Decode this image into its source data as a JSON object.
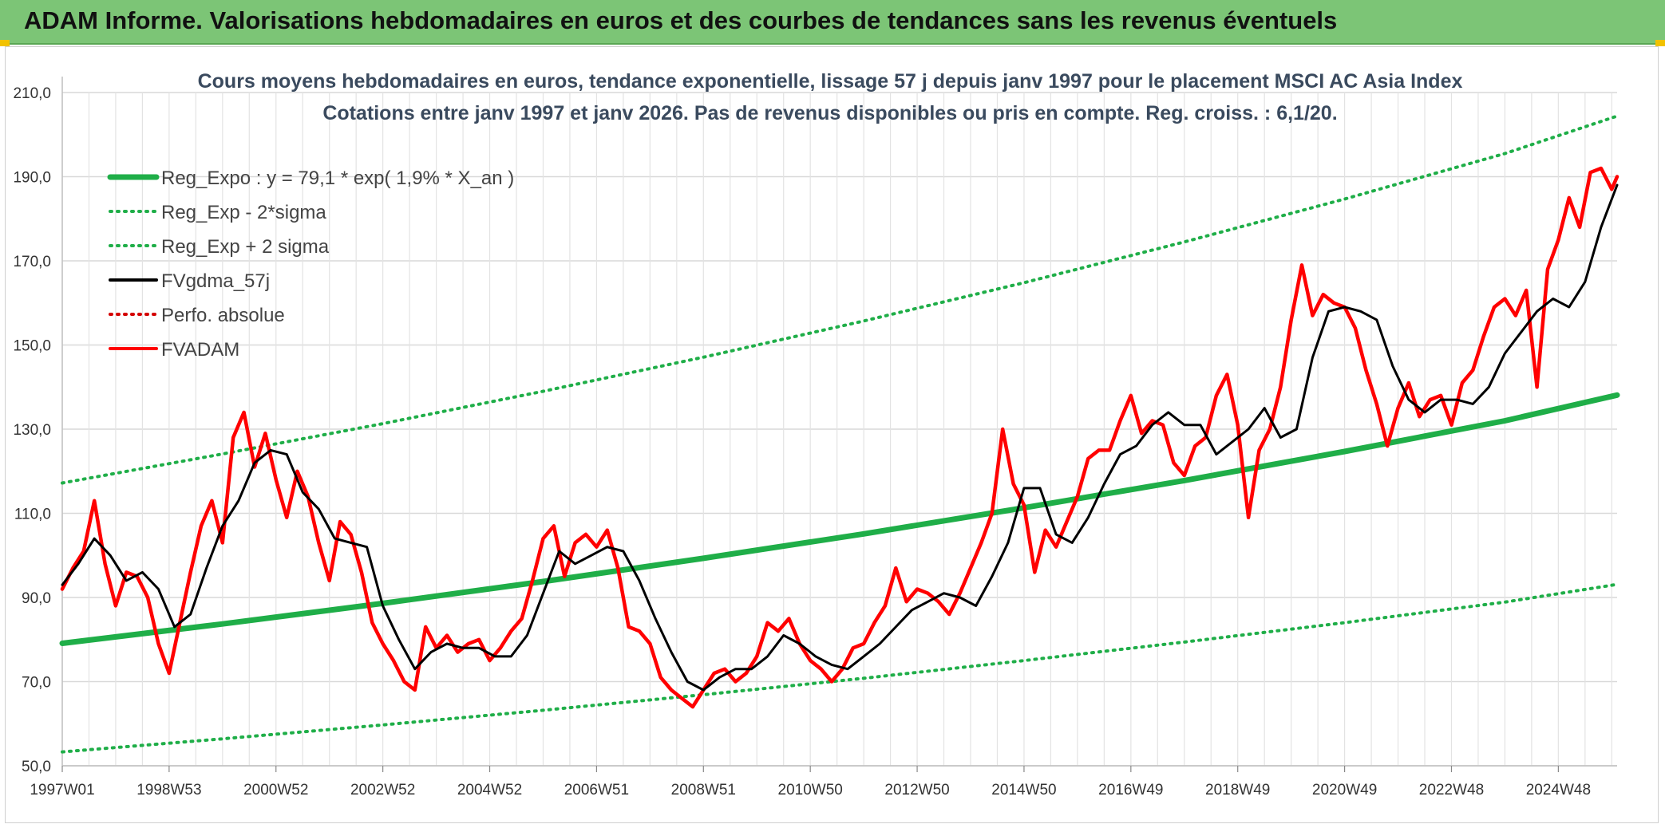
{
  "header": {
    "title": "ADAM Informe. Valorisations hebdomadaires en euros et des courbes de tendances sans les revenus éventuels",
    "background": "#7cc576"
  },
  "chart_data": {
    "type": "line",
    "title_line1": "Cours moyens hebdomadaires en euros, tendance exponentielle, lissage 57 j depuis janv 1997 pour le placement MSCI AC Asia Index",
    "title_line2": "Cotations entre janv 1997 et janv 2026. Pas de revenus disponibles ou pris en compte. Reg. croiss. : 6,1/20.",
    "xlabel": "",
    "ylabel": "",
    "ylim": [
      50,
      210
    ],
    "xlim": [
      1997.0,
      2026.1
    ],
    "y_ticks": [
      "50,0",
      "70,0",
      "90,0",
      "110,0",
      "130,0",
      "150,0",
      "170,0",
      "190,0",
      "210,0"
    ],
    "x_ticks": [
      {
        "label": "1997W01",
        "x": 1997.0
      },
      {
        "label": "1998W53",
        "x": 1999.0
      },
      {
        "label": "2000W52",
        "x": 2001.0
      },
      {
        "label": "2002W52",
        "x": 2003.0
      },
      {
        "label": "2004W52",
        "x": 2005.0
      },
      {
        "label": "2006W51",
        "x": 2007.0
      },
      {
        "label": "2008W51",
        "x": 2009.0
      },
      {
        "label": "2010W50",
        "x": 2011.0
      },
      {
        "label": "2012W50",
        "x": 2013.0
      },
      {
        "label": "2014W50",
        "x": 2015.0
      },
      {
        "label": "2016W49",
        "x": 2017.0
      },
      {
        "label": "2018W49",
        "x": 2019.0
      },
      {
        "label": "2020W49",
        "x": 2021.0
      },
      {
        "label": "2022W48",
        "x": 2023.0
      },
      {
        "label": "2024W48",
        "x": 2025.0
      }
    ],
    "grid": true,
    "legend_position": "top-left",
    "regression": {
      "a": 79.1,
      "b": 0.019,
      "x0": 1997.0,
      "sigma_band": 1
    },
    "series": [
      {
        "name": "Reg_Expo : y = 79,1 * exp( 1,9% *  X_an )",
        "style": "solid-thick",
        "color": "#1fae48",
        "x": [
          1997.0,
          2000.0,
          2003.0,
          2006.0,
          2009.0,
          2012.0,
          2015.0,
          2018.0,
          2021.0,
          2024.0,
          2026.1
        ],
        "values": [
          79.1,
          83.7,
          88.6,
          93.8,
          99.3,
          105.1,
          111.3,
          117.8,
          124.7,
          132.0,
          138.1
        ]
      },
      {
        "name": "Reg_Exp - 2*sigma",
        "style": "dotted",
        "color": "#1fae48",
        "x": [
          1997.0,
          2000.0,
          2003.0,
          2006.0,
          2009.0,
          2012.0,
          2015.0,
          2018.0,
          2021.0,
          2024.0,
          2026.1
        ],
        "values": [
          53.3,
          56.4,
          59.7,
          63.2,
          66.9,
          70.8,
          75.0,
          79.4,
          84.0,
          88.9,
          93.1
        ]
      },
      {
        "name": "Reg_Exp + 2 sigma",
        "style": "dotted",
        "color": "#1fae48",
        "x": [
          1997.0,
          2000.0,
          2003.0,
          2006.0,
          2009.0,
          2012.0,
          2015.0,
          2018.0,
          2021.0,
          2024.0,
          2026.1
        ],
        "values": [
          117.2,
          124.1,
          131.3,
          139.0,
          147.1,
          155.7,
          164.8,
          174.5,
          184.7,
          195.5,
          204.4
        ]
      },
      {
        "name": "FVgdma_57j",
        "style": "solid",
        "color": "#000000",
        "x": [
          1997.0,
          1997.3,
          1997.6,
          1997.9,
          1998.2,
          1998.5,
          1998.8,
          1999.1,
          1999.4,
          1999.7,
          2000.0,
          2000.3,
          2000.6,
          2000.9,
          2001.2,
          2001.5,
          2001.8,
          2002.1,
          2002.4,
          2002.7,
          2003.0,
          2003.3,
          2003.6,
          2003.9,
          2004.2,
          2004.5,
          2004.8,
          2005.1,
          2005.4,
          2005.7,
          2006.0,
          2006.3,
          2006.6,
          2006.9,
          2007.2,
          2007.5,
          2007.8,
          2008.1,
          2008.4,
          2008.7,
          2009.0,
          2009.3,
          2009.6,
          2009.9,
          2010.2,
          2010.5,
          2010.8,
          2011.1,
          2011.4,
          2011.7,
          2012.0,
          2012.3,
          2012.6,
          2012.9,
          2013.2,
          2013.5,
          2013.8,
          2014.1,
          2014.4,
          2014.7,
          2015.0,
          2015.3,
          2015.6,
          2015.9,
          2016.2,
          2016.5,
          2016.8,
          2017.1,
          2017.4,
          2017.7,
          2018.0,
          2018.3,
          2018.6,
          2018.9,
          2019.2,
          2019.5,
          2019.8,
          2020.1,
          2020.4,
          2020.7,
          2021.0,
          2021.3,
          2021.6,
          2021.9,
          2022.2,
          2022.5,
          2022.8,
          2023.1,
          2023.4,
          2023.7,
          2024.0,
          2024.3,
          2024.6,
          2024.9,
          2025.2,
          2025.5,
          2025.8,
          2026.1
        ],
        "values": [
          93,
          98,
          104,
          100,
          94,
          96,
          92,
          83,
          86,
          97,
          107,
          113,
          122,
          125,
          124,
          115,
          111,
          104,
          103,
          102,
          88,
          80,
          73,
          77,
          79,
          78,
          78,
          76,
          76,
          81,
          91,
          101,
          98,
          100,
          102,
          101,
          94,
          85,
          77,
          70,
          68,
          71,
          73,
          73,
          76,
          81,
          79,
          76,
          74,
          73,
          76,
          79,
          83,
          87,
          89,
          91,
          90,
          88,
          95,
          103,
          116,
          116,
          105,
          103,
          109,
          117,
          124,
          126,
          131,
          134,
          131,
          131,
          124,
          127,
          130,
          135,
          128,
          130,
          147,
          158,
          159,
          158,
          156,
          145,
          137,
          134,
          137,
          137,
          136,
          140,
          148,
          153,
          158,
          161,
          159,
          165,
          178,
          188
        ]
      },
      {
        "name": "Perfo. absolue",
        "style": "dotted",
        "color": "#d40000",
        "x": [],
        "values": []
      },
      {
        "name": "FVADAM",
        "style": "solid-thick",
        "color": "#ff0000",
        "x": [
          1997.0,
          1997.2,
          1997.4,
          1997.6,
          1997.8,
          1998.0,
          1998.2,
          1998.4,
          1998.6,
          1998.8,
          1999.0,
          1999.2,
          1999.4,
          1999.6,
          1999.8,
          2000.0,
          2000.2,
          2000.4,
          2000.6,
          2000.8,
          2001.0,
          2001.2,
          2001.4,
          2001.6,
          2001.8,
          2002.0,
          2002.2,
          2002.4,
          2002.6,
          2002.8,
          2003.0,
          2003.2,
          2003.4,
          2003.6,
          2003.8,
          2004.0,
          2004.2,
          2004.4,
          2004.6,
          2004.8,
          2005.0,
          2005.2,
          2005.4,
          2005.6,
          2005.8,
          2006.0,
          2006.2,
          2006.4,
          2006.6,
          2006.8,
          2007.0,
          2007.2,
          2007.4,
          2007.6,
          2007.8,
          2008.0,
          2008.2,
          2008.4,
          2008.6,
          2008.8,
          2009.0,
          2009.2,
          2009.4,
          2009.6,
          2009.8,
          2010.0,
          2010.2,
          2010.4,
          2010.6,
          2010.8,
          2011.0,
          2011.2,
          2011.4,
          2011.6,
          2011.8,
          2012.0,
          2012.2,
          2012.4,
          2012.6,
          2012.8,
          2013.0,
          2013.2,
          2013.4,
          2013.6,
          2013.8,
          2014.0,
          2014.2,
          2014.4,
          2014.6,
          2014.8,
          2015.0,
          2015.2,
          2015.4,
          2015.6,
          2015.8,
          2016.0,
          2016.2,
          2016.4,
          2016.6,
          2016.8,
          2017.0,
          2017.2,
          2017.4,
          2017.6,
          2017.8,
          2018.0,
          2018.2,
          2018.4,
          2018.6,
          2018.8,
          2019.0,
          2019.2,
          2019.4,
          2019.6,
          2019.8,
          2020.0,
          2020.2,
          2020.4,
          2020.6,
          2020.8,
          2021.0,
          2021.2,
          2021.4,
          2021.6,
          2021.8,
          2022.0,
          2022.2,
          2022.4,
          2022.6,
          2022.8,
          2023.0,
          2023.2,
          2023.4,
          2023.6,
          2023.8,
          2024.0,
          2024.2,
          2024.4,
          2024.6,
          2024.8,
          2025.0,
          2025.2,
          2025.4,
          2025.6,
          2025.8,
          2026.0,
          2026.1
        ],
        "values": [
          92,
          97,
          101,
          113,
          98,
          88,
          96,
          95,
          90,
          79,
          72,
          84,
          96,
          107,
          113,
          103,
          128,
          134,
          121,
          129,
          118,
          109,
          120,
          114,
          103,
          94,
          108,
          105,
          96,
          84,
          79,
          75,
          70,
          68,
          83,
          78,
          81,
          77,
          79,
          80,
          75,
          78,
          82,
          85,
          94,
          104,
          107,
          95,
          103,
          105,
          102,
          106,
          97,
          83,
          82,
          79,
          71,
          68,
          66,
          64,
          68,
          72,
          73,
          70,
          72,
          76,
          84,
          82,
          85,
          79,
          75,
          73,
          70,
          73,
          78,
          79,
          84,
          88,
          97,
          89,
          92,
          91,
          89,
          86,
          91,
          97,
          103,
          110,
          130,
          117,
          112,
          96,
          106,
          102,
          108,
          114,
          123,
          125,
          125,
          132,
          138,
          129,
          132,
          131,
          122,
          119,
          126,
          128,
          138,
          143,
          131,
          109,
          125,
          130,
          140,
          156,
          169,
          157,
          162,
          160,
          159,
          154,
          144,
          136,
          126,
          135,
          141,
          133,
          137,
          138,
          131,
          141,
          144,
          152,
          159,
          161,
          157,
          163,
          140,
          168,
          175,
          185,
          178,
          191,
          192,
          187,
          190
        ]
      }
    ]
  }
}
